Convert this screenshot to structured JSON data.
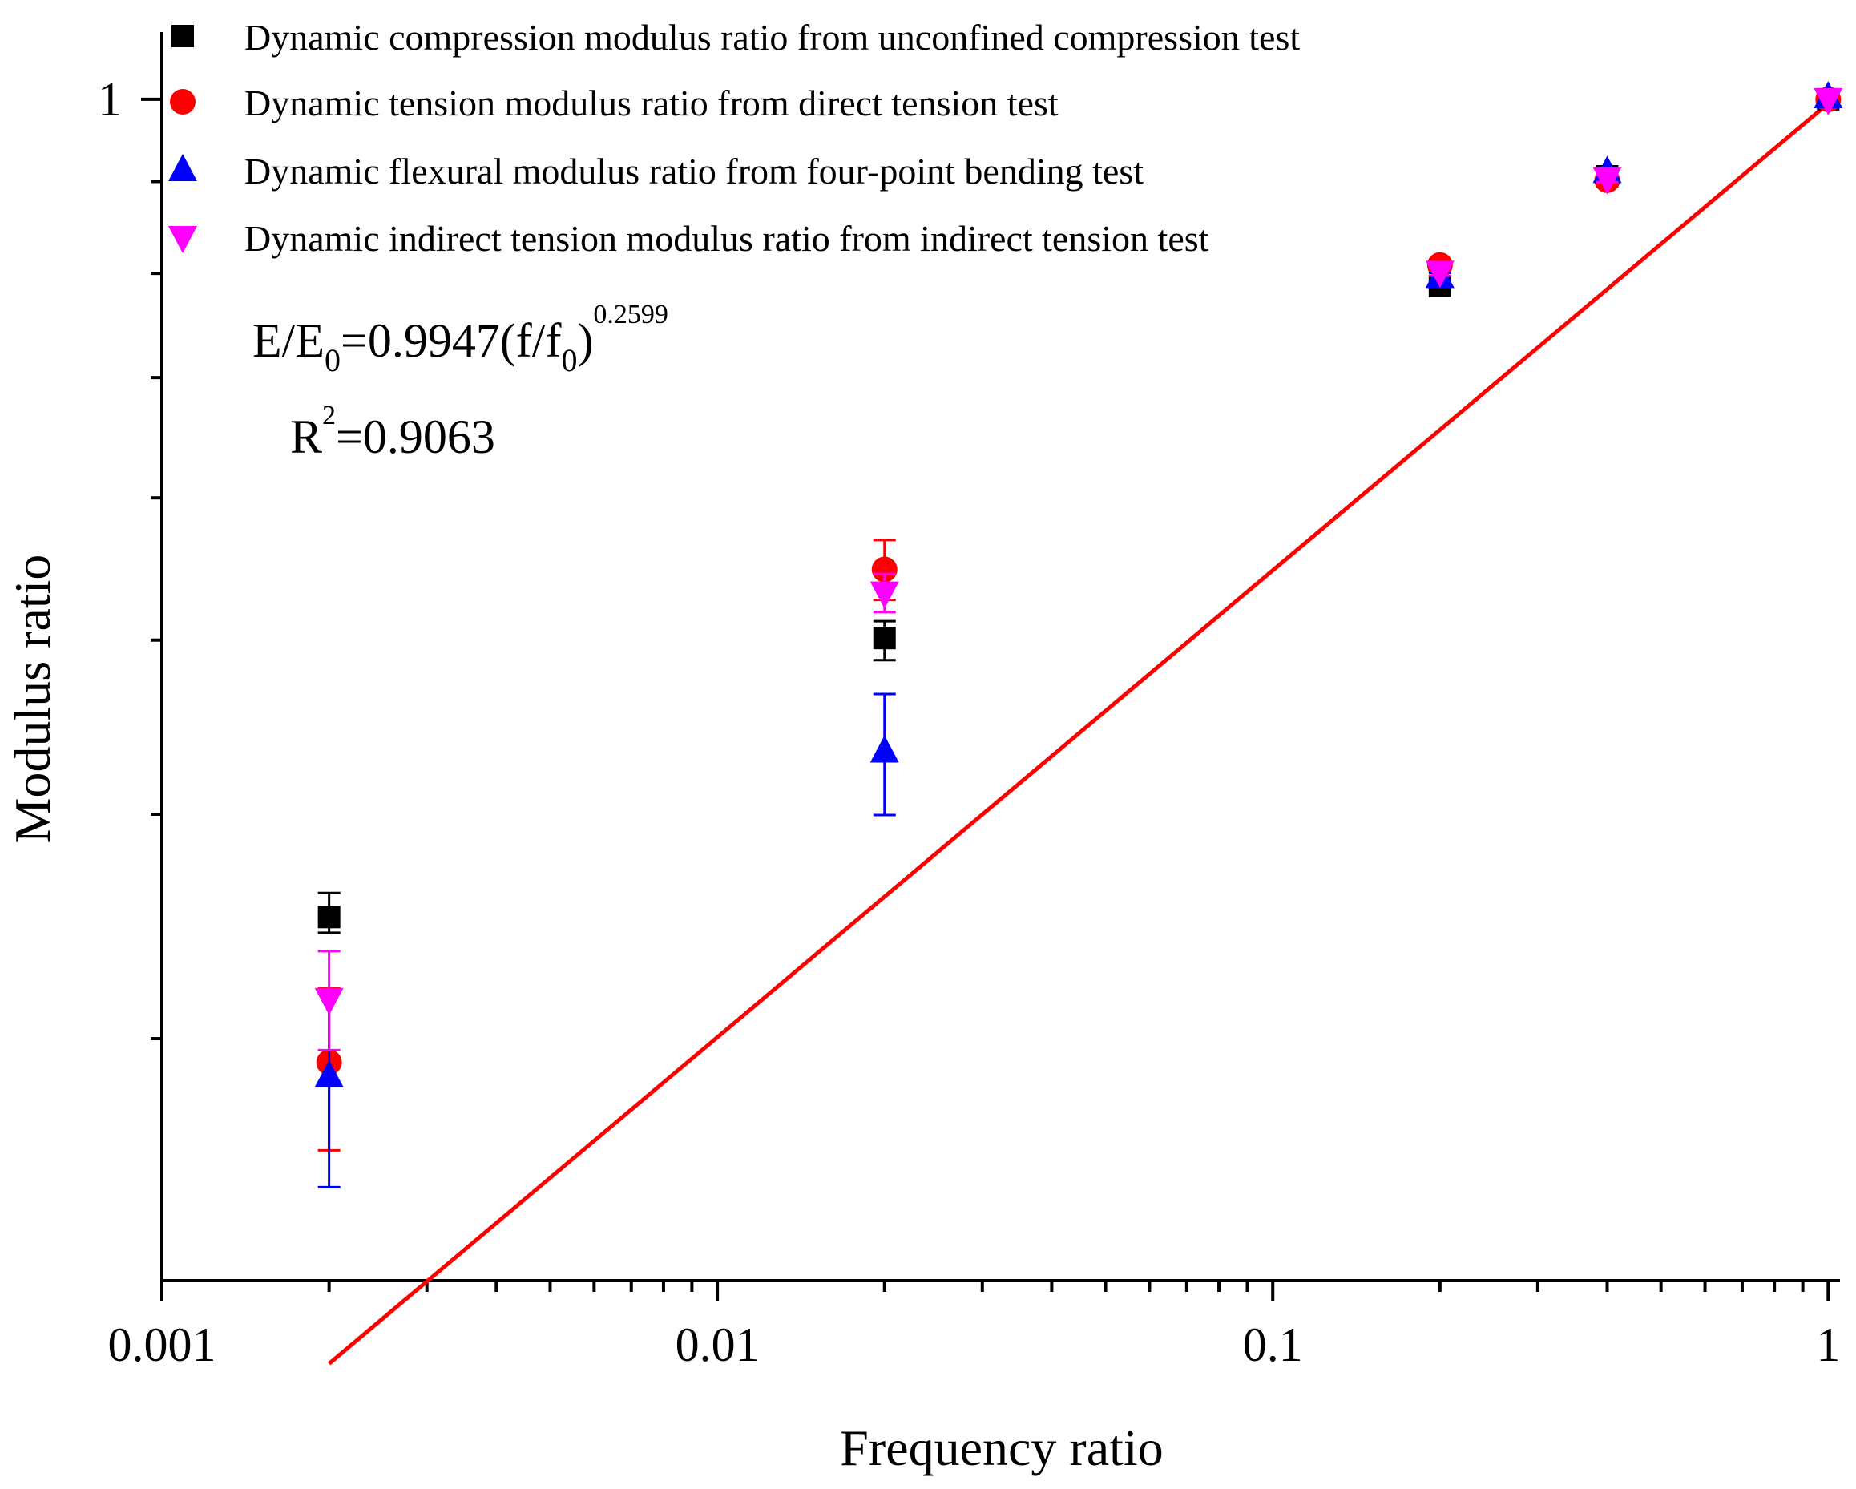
{
  "chart_data": {
    "type": "scatter",
    "xlabel": "Frequency ratio",
    "ylabel": "Modulus ratio",
    "xscale": "log",
    "yscale": "log",
    "xlim": [
      0.001,
      1.05
    ],
    "ylim": [
      0.22,
      1.09
    ],
    "x_tick_labels": [
      {
        "value": 0.001,
        "label": "0.001"
      },
      {
        "value": 0.01,
        "label": "0.01"
      },
      {
        "value": 0.1,
        "label": "0.1"
      },
      {
        "value": 1,
        "label": "1"
      }
    ],
    "y_tick_labels": [
      {
        "value": 1,
        "label": "1"
      }
    ],
    "legend_position": "top-left",
    "series": [
      {
        "name": "Dynamic compression modulus ratio from unconfined compression test",
        "marker": "square",
        "color": "#000000",
        "points": [
          {
            "x": 0.002,
            "y": 0.3506,
            "yerr_low": 0.3436,
            "yerr_high": 0.3616
          },
          {
            "x": 0.02,
            "y": 0.5013,
            "yerr_low": 0.4873,
            "yerr_high": 0.5123
          },
          {
            "x": 0.2,
            "y": 0.7872,
            "yerr_low": 0.7842,
            "yerr_high": 0.7902
          },
          {
            "x": 0.4,
            "y": 0.906,
            "yerr_low": 0.902,
            "yerr_high": 0.91
          },
          {
            "x": 1,
            "y": 1.0,
            "yerr_low": 1.0,
            "yerr_high": 1.0
          }
        ]
      },
      {
        "name": "Dynamic tension modulus ratio from direct tension test",
        "marker": "circle",
        "color": "#ff0000",
        "points": [
          {
            "x": 0.002,
            "y": 0.291,
            "yerr_low": 0.26,
            "yerr_high": 0.32
          },
          {
            "x": 0.02,
            "y": 0.5474,
            "yerr_low": 0.5264,
            "yerr_high": 0.5684
          },
          {
            "x": 0.2,
            "y": 0.8086,
            "yerr_low": 0.8046,
            "yerr_high": 0.8126
          },
          {
            "x": 0.4,
            "y": 0.9015,
            "yerr_low": 0.8985,
            "yerr_high": 0.9045
          },
          {
            "x": 1,
            "y": 1.0,
            "yerr_low": 1.0,
            "yerr_high": 1.0
          }
        ]
      },
      {
        "name": "Dynamic flexural modulus ratio from four-point bending test",
        "marker": "triangle-up",
        "color": "#0000ff",
        "points": [
          {
            "x": 0.002,
            "y": 0.286,
            "yerr_low": 0.248,
            "yerr_high": 0.318
          },
          {
            "x": 0.02,
            "y": 0.4336,
            "yerr_low": 0.3996,
            "yerr_high": 0.4666
          },
          {
            "x": 0.2,
            "y": 0.7965,
            "yerr_low": 0.7925,
            "yerr_high": 0.8005
          },
          {
            "x": 0.4,
            "y": 0.9113,
            "yerr_low": 0.9073,
            "yerr_high": 0.9153
          },
          {
            "x": 1,
            "y": 1.003,
            "yerr_low": 1.003,
            "yerr_high": 1.003
          }
        ]
      },
      {
        "name": "Dynamic indirect tension modulus ratio from indirect tension test",
        "marker": "triangle-down",
        "color": "#ff00ff",
        "points": [
          {
            "x": 0.002,
            "y": 0.3156,
            "yerr_low": 0.2956,
            "yerr_high": 0.3356
          },
          {
            "x": 0.02,
            "y": 0.5313,
            "yerr_low": 0.5183,
            "yerr_high": 0.5443
          },
          {
            "x": 0.2,
            "y": 0.8016,
            "yerr_low": 0.7976,
            "yerr_high": 0.8056
          },
          {
            "x": 0.4,
            "y": 0.9034,
            "yerr_low": 0.8994,
            "yerr_high": 0.9074
          },
          {
            "x": 1,
            "y": 1.0,
            "yerr_low": 1.0,
            "yerr_high": 1.0
          }
        ]
      }
    ],
    "fit": {
      "a": 0.9947,
      "b": 0.2599,
      "x_range": [
        0.002,
        1
      ],
      "color": "#ff0000"
    }
  },
  "annotations": {
    "equation_lhs": "E/E",
    "equation_lhs_sub": "0",
    "equation_mid": "=0.9947(f/f",
    "equation_mid_sub": "0",
    "equation_close": ")",
    "equation_exp": "0.2599",
    "r2_prefix": "R",
    "r2_sup": "2",
    "r2_value": "=0.9063"
  }
}
